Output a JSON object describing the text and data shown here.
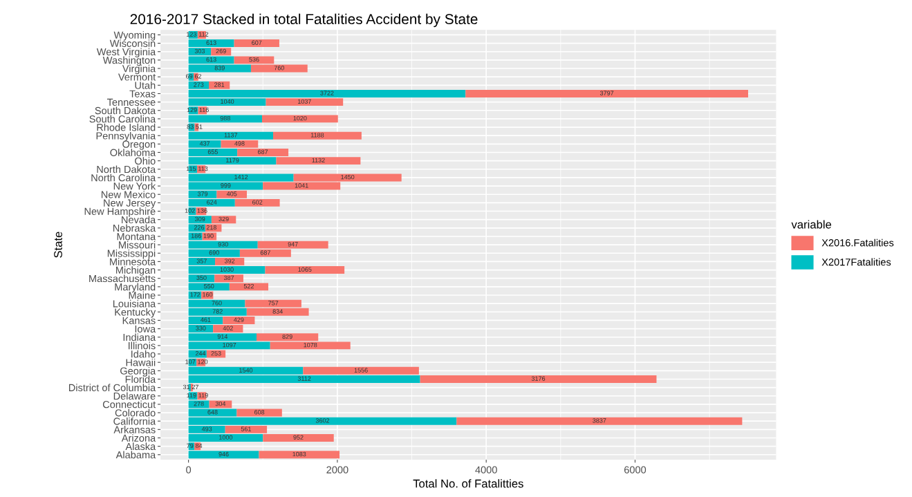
{
  "chart_data": {
    "type": "bar",
    "orientation": "horizontal",
    "stacked": true,
    "title": "2016-2017 Stacked in total Fatalities Accident by State",
    "xlabel": "Total No. of Fatalitties",
    "ylabel": "State",
    "legend_title": "variable",
    "legend": "right",
    "grid": true,
    "data_labels": true,
    "categories": [
      "Wyoming",
      "Wisconsin",
      "West Virginia",
      "Washington",
      "Virginia",
      "Vermont",
      "Utah",
      "Texas",
      "Tennessee",
      "South Dakota",
      "South Carolina",
      "Rhode Island",
      "Pennsylvania",
      "Oregon",
      "Oklahoma",
      "Ohio",
      "North Dakota",
      "North Carolina",
      "New York",
      "New Mexico",
      "New Jersey",
      "New Hampshire",
      "Nevada",
      "Nebraska",
      "Montana",
      "Missouri",
      "Mississippi",
      "Minnesota",
      "Michigan",
      "Massachusetts",
      "Maryland",
      "Maine",
      "Louisiana",
      "Kentucky",
      "Kansas",
      "Iowa",
      "Indiana",
      "Illinois",
      "Idaho",
      "Hawaii",
      "Georgia",
      "Florida",
      "District of Columbia",
      "Delaware",
      "Connecticut",
      "Colorado",
      "California",
      "Arkansas",
      "Arizona",
      "Alaska",
      "Alabama"
    ],
    "series": [
      {
        "name": "X2017Fatalities",
        "color": "#00bfc4",
        "values": [
          123,
          613,
          303,
          613,
          839,
          69,
          273,
          3722,
          1040,
          129,
          988,
          83,
          1137,
          437,
          655,
          1179,
          115,
          1412,
          999,
          379,
          624,
          102,
          309,
          226,
          186,
          930,
          690,
          357,
          1030,
          350,
          550,
          172,
          760,
          782,
          461,
          330,
          914,
          1097,
          244,
          107,
          1540,
          3112,
          31,
          119,
          278,
          648,
          3602,
          493,
          1000,
          79,
          946
        ]
      },
      {
        "name": "X2016.Fatalities",
        "color": "#f8766d",
        "values": [
          112,
          607,
          269,
          536,
          760,
          62,
          281,
          3797,
          1037,
          116,
          1020,
          51,
          1188,
          498,
          687,
          1132,
          113,
          1450,
          1041,
          405,
          602,
          136,
          329,
          218,
          190,
          947,
          687,
          392,
          1065,
          387,
          522,
          160,
          757,
          834,
          429,
          402,
          829,
          1078,
          253,
          120,
          1556,
          3176,
          27,
          119,
          304,
          608,
          3837,
          561,
          952,
          84,
          1083
        ]
      }
    ],
    "xlim": [
      -376,
      7895
    ],
    "xticks": [
      0,
      2000,
      4000,
      6000
    ]
  }
}
